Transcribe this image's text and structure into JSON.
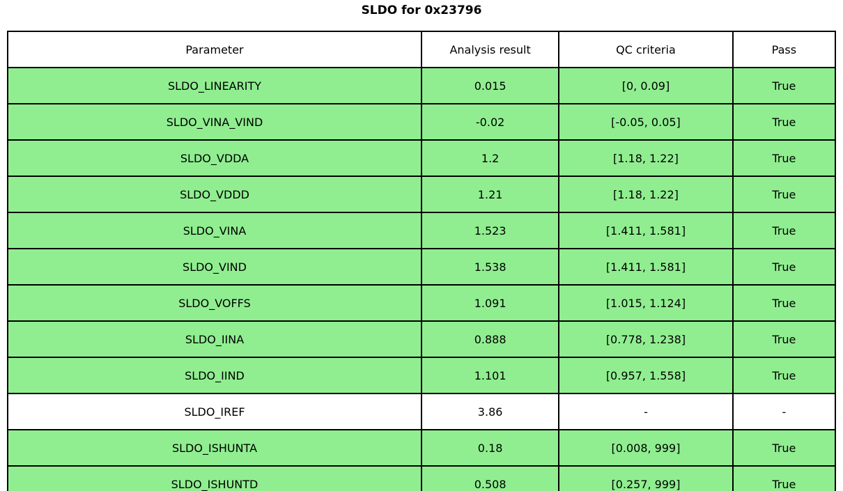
{
  "title": "SLDO for 0x23796",
  "colors": {
    "pass_row_green": "#90ee90",
    "neutral_row_white": "#ffffff",
    "border_black": "#000000",
    "text_black": "#000000"
  },
  "chart_data": {
    "type": "table",
    "title": "SLDO for 0x23796",
    "columns": [
      "Parameter",
      "Analysis result",
      "QC criteria",
      "Pass"
    ],
    "rows": [
      {
        "parameter": "SLDO_LINEARITY",
        "result": "0.015",
        "criteria": "[0, 0.09]",
        "pass": "True",
        "highlighted_green": true
      },
      {
        "parameter": "SLDO_VINA_VIND",
        "result": "-0.02",
        "criteria": "[-0.05, 0.05]",
        "pass": "True",
        "highlighted_green": true
      },
      {
        "parameter": "SLDO_VDDA",
        "result": "1.2",
        "criteria": "[1.18, 1.22]",
        "pass": "True",
        "highlighted_green": true
      },
      {
        "parameter": "SLDO_VDDD",
        "result": "1.21",
        "criteria": "[1.18, 1.22]",
        "pass": "True",
        "highlighted_green": true
      },
      {
        "parameter": "SLDO_VINA",
        "result": "1.523",
        "criteria": "[1.411, 1.581]",
        "pass": "True",
        "highlighted_green": true
      },
      {
        "parameter": "SLDO_VIND",
        "result": "1.538",
        "criteria": "[1.411, 1.581]",
        "pass": "True",
        "highlighted_green": true
      },
      {
        "parameter": "SLDO_VOFFS",
        "result": "1.091",
        "criteria": "[1.015, 1.124]",
        "pass": "True",
        "highlighted_green": true
      },
      {
        "parameter": "SLDO_IINA",
        "result": "0.888",
        "criteria": "[0.778, 1.238]",
        "pass": "True",
        "highlighted_green": true
      },
      {
        "parameter": "SLDO_IIND",
        "result": "1.101",
        "criteria": "[0.957, 1.558]",
        "pass": "True",
        "highlighted_green": true
      },
      {
        "parameter": "SLDO_IREF",
        "result": "3.86",
        "criteria": "-",
        "pass": "-",
        "highlighted_green": false
      },
      {
        "parameter": "SLDO_ISHUNTA",
        "result": "0.18",
        "criteria": "[0.008, 999]",
        "pass": "True",
        "highlighted_green": true
      },
      {
        "parameter": "SLDO_ISHUNTD",
        "result": "0.508",
        "criteria": "[0.257, 999]",
        "pass": "True",
        "highlighted_green": true
      }
    ],
    "legend": "none",
    "grid": "full cell borders"
  }
}
